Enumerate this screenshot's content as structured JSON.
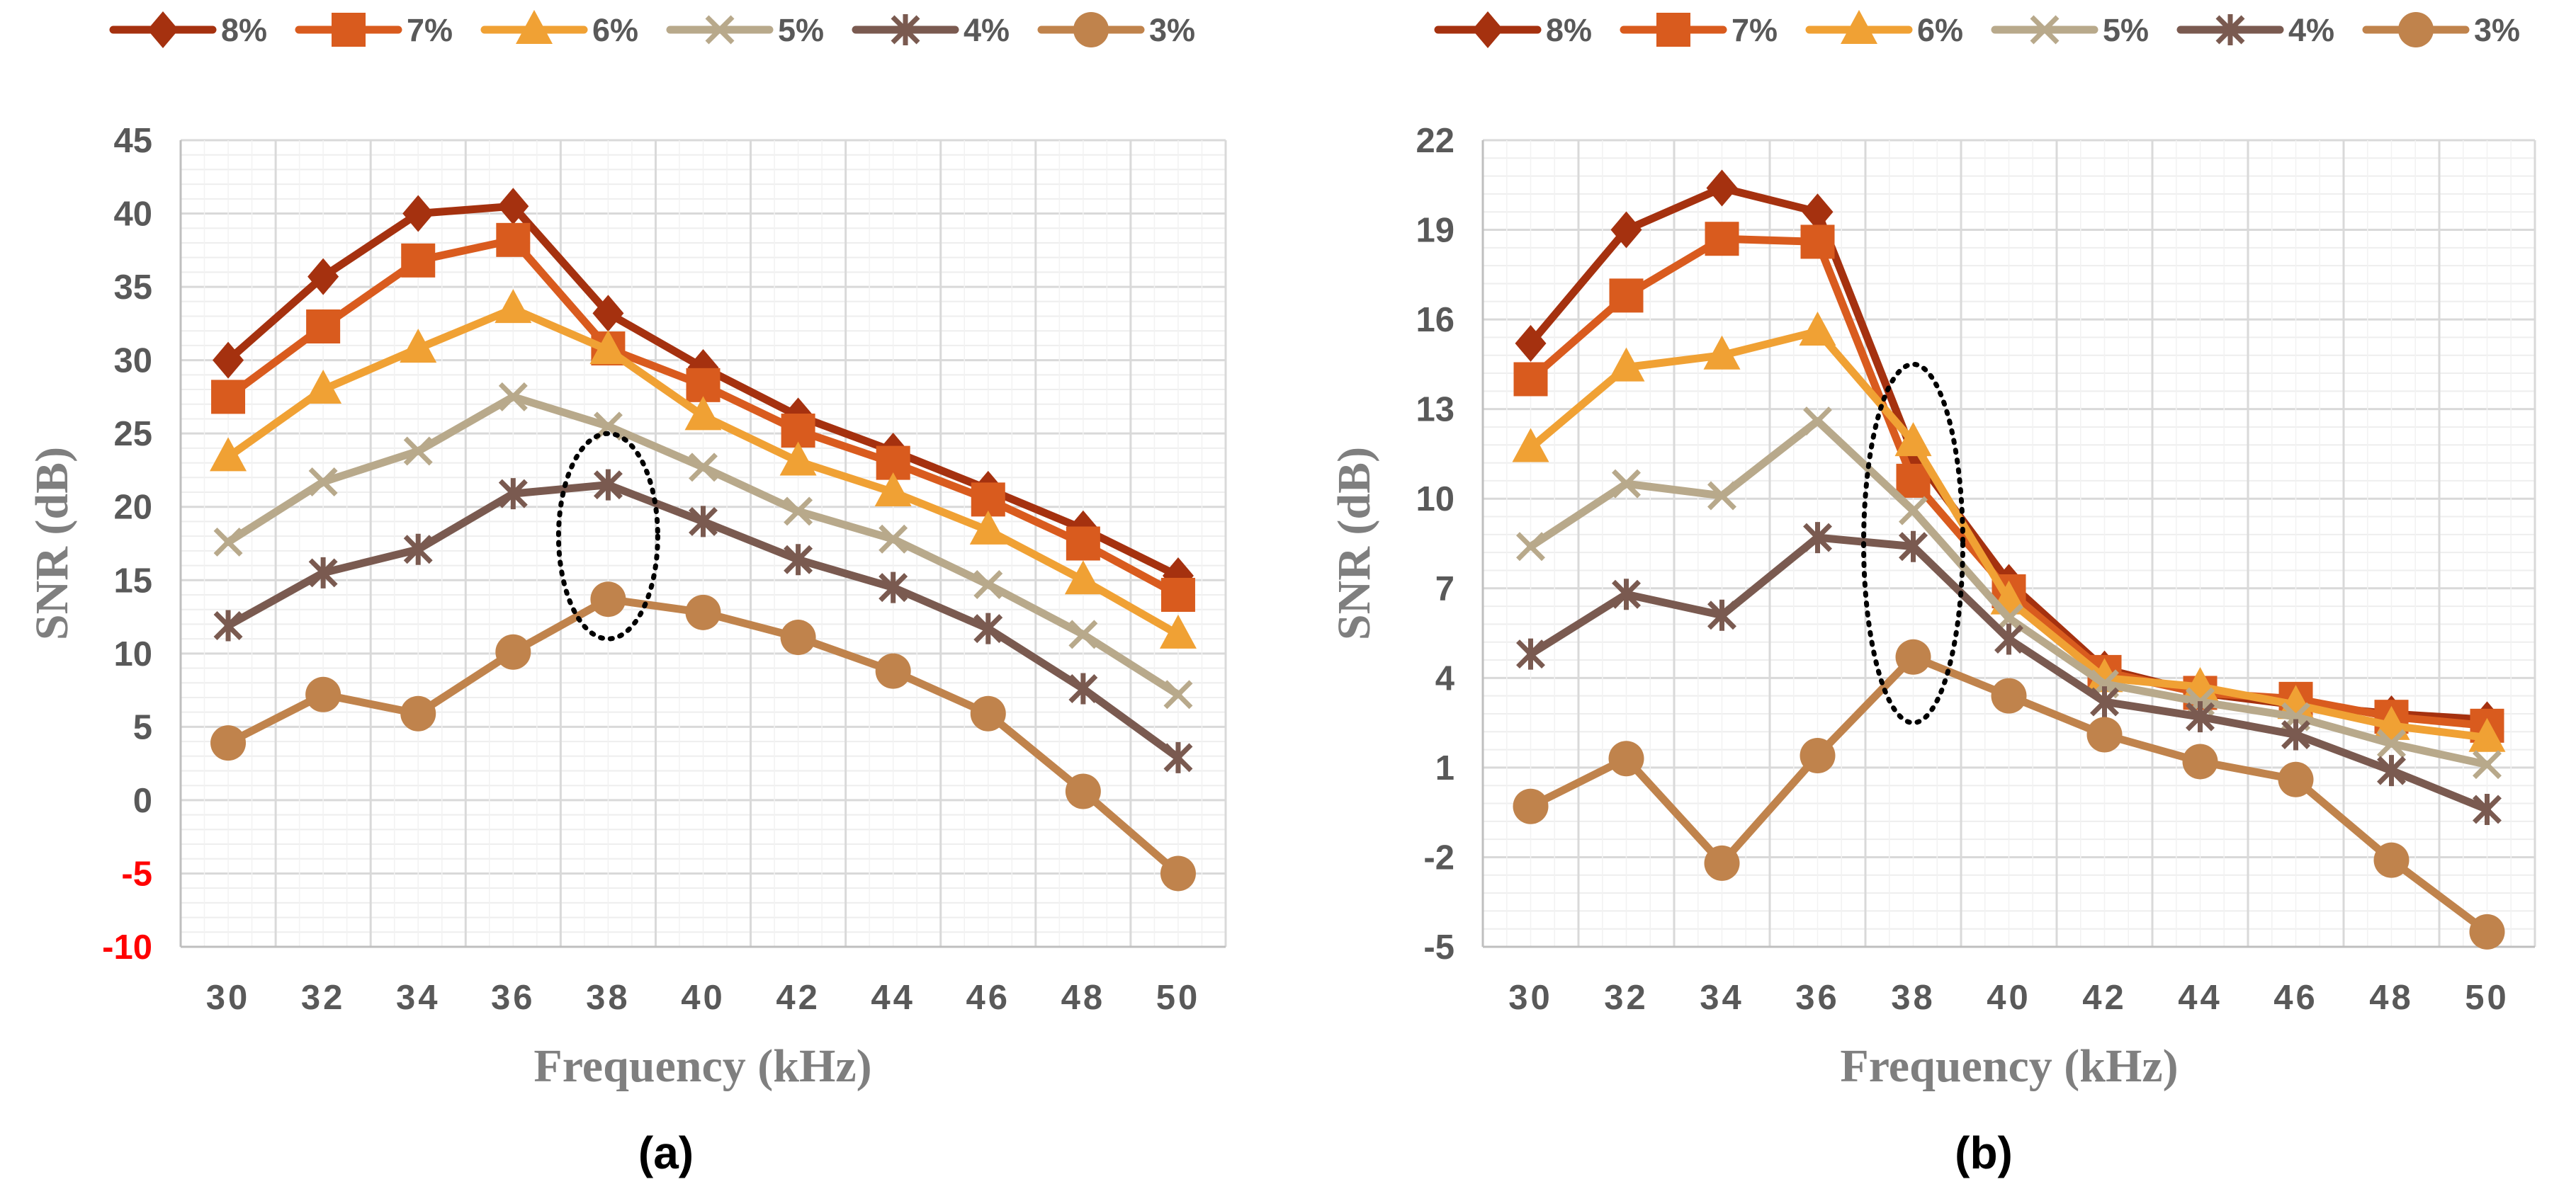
{
  "chart_data": [
    {
      "panel_label": "(a)",
      "type": "line",
      "xlabel": "Frequency (kHz)",
      "ylabel": "SNR (dB)",
      "x": [
        30,
        32,
        34,
        36,
        38,
        40,
        42,
        44,
        46,
        48,
        50
      ],
      "x_tick_labels": [
        "30",
        "32",
        "34",
        "36",
        "38",
        "40",
        "42",
        "44",
        "46",
        "48",
        "50"
      ],
      "ylim": [
        -10,
        45
      ],
      "y_ticks": [
        -10,
        -5,
        0,
        5,
        10,
        15,
        20,
        25,
        30,
        35,
        40,
        45
      ],
      "y_tick_labels": [
        "-10",
        "-5",
        "0",
        "5",
        "10",
        "15",
        "20",
        "25",
        "30",
        "35",
        "40",
        "45"
      ],
      "negative_tick_color": "#ff0000",
      "tick_color": "#595959",
      "grid": true,
      "legend_position": "top",
      "annotation": {
        "type": "dotted-ellipse",
        "x": 38,
        "y_range": [
          11,
          25
        ]
      },
      "series": [
        {
          "name": "8%",
          "color": "#a5310f",
          "marker": "diamond",
          "values": [
            30.0,
            35.7,
            40.0,
            40.5,
            33.2,
            29.5,
            26.2,
            23.8,
            21.2,
            18.5,
            15.3
          ]
        },
        {
          "name": "7%",
          "color": "#d95b1e",
          "marker": "square",
          "values": [
            27.5,
            32.3,
            36.8,
            38.2,
            30.8,
            28.3,
            25.2,
            23.0,
            20.5,
            17.5,
            14.0
          ]
        },
        {
          "name": "6%",
          "color": "#f0a134",
          "marker": "triangle",
          "values": [
            23.4,
            28.0,
            30.8,
            33.5,
            30.7,
            26.2,
            23.1,
            21.0,
            18.4,
            15.0,
            11.3
          ]
        },
        {
          "name": "5%",
          "color": "#b8a98b",
          "marker": "x",
          "values": [
            17.6,
            21.7,
            23.8,
            27.5,
            25.5,
            22.7,
            19.7,
            17.8,
            14.7,
            11.3,
            7.2
          ]
        },
        {
          "name": "4%",
          "color": "#7a5a50",
          "marker": "star",
          "values": [
            11.9,
            15.5,
            17.1,
            20.9,
            21.5,
            19.0,
            16.4,
            14.5,
            11.7,
            7.6,
            2.9
          ]
        },
        {
          "name": "3%",
          "color": "#c0834c",
          "marker": "circle",
          "values": [
            3.9,
            7.2,
            5.9,
            10.1,
            13.7,
            12.8,
            11.1,
            8.8,
            5.9,
            0.6,
            -5.0
          ]
        }
      ]
    },
    {
      "panel_label": "(b)",
      "type": "line",
      "xlabel": "Frequency (kHz)",
      "ylabel": "SNR (dB)",
      "x": [
        30,
        32,
        34,
        36,
        38,
        40,
        42,
        44,
        46,
        48,
        50
      ],
      "x_tick_labels": [
        "30",
        "32",
        "34",
        "36",
        "38",
        "40",
        "42",
        "44",
        "46",
        "48",
        "50"
      ],
      "ylim": [
        -5,
        22
      ],
      "y_ticks": [
        -5,
        -2,
        1,
        4,
        7,
        10,
        13,
        16,
        19,
        22
      ],
      "y_tick_labels": [
        "-5",
        "-2",
        "1",
        "4",
        "7",
        "10",
        "13",
        "16",
        "19",
        "22"
      ],
      "negative_tick_color": "#595959",
      "tick_color": "#595959",
      "grid": true,
      "legend_position": "top",
      "annotation": {
        "type": "dotted-ellipse",
        "x": 38,
        "y_range": [
          2.5,
          14.5
        ]
      },
      "series": [
        {
          "name": "8%",
          "color": "#a5310f",
          "marker": "diamond",
          "values": [
            15.2,
            19.0,
            20.4,
            19.6,
            11.5,
            7.2,
            4.3,
            3.5,
            3.1,
            2.8,
            2.6
          ]
        },
        {
          "name": "7%",
          "color": "#d95b1e",
          "marker": "square",
          "values": [
            14.0,
            16.8,
            18.7,
            18.6,
            10.6,
            6.9,
            4.2,
            3.5,
            3.3,
            2.7,
            2.4
          ]
        },
        {
          "name": "6%",
          "color": "#f0a134",
          "marker": "triangle",
          "values": [
            11.7,
            14.4,
            14.8,
            15.6,
            11.9,
            6.6,
            4.0,
            3.7,
            3.1,
            2.4,
            2.0
          ]
        },
        {
          "name": "5%",
          "color": "#b8a98b",
          "marker": "x",
          "values": [
            8.4,
            10.5,
            10.1,
            12.6,
            9.6,
            6.0,
            3.8,
            3.2,
            2.7,
            1.8,
            1.1
          ]
        },
        {
          "name": "4%",
          "color": "#7a5a50",
          "marker": "star",
          "values": [
            4.8,
            6.8,
            6.1,
            8.7,
            8.4,
            5.3,
            3.2,
            2.7,
            2.1,
            0.9,
            -0.4
          ]
        },
        {
          "name": "3%",
          "color": "#c0834c",
          "marker": "circle",
          "values": [
            -0.3,
            1.3,
            -2.2,
            1.4,
            4.7,
            3.4,
            2.1,
            1.2,
            0.6,
            -2.1,
            -4.5
          ]
        }
      ]
    }
  ]
}
